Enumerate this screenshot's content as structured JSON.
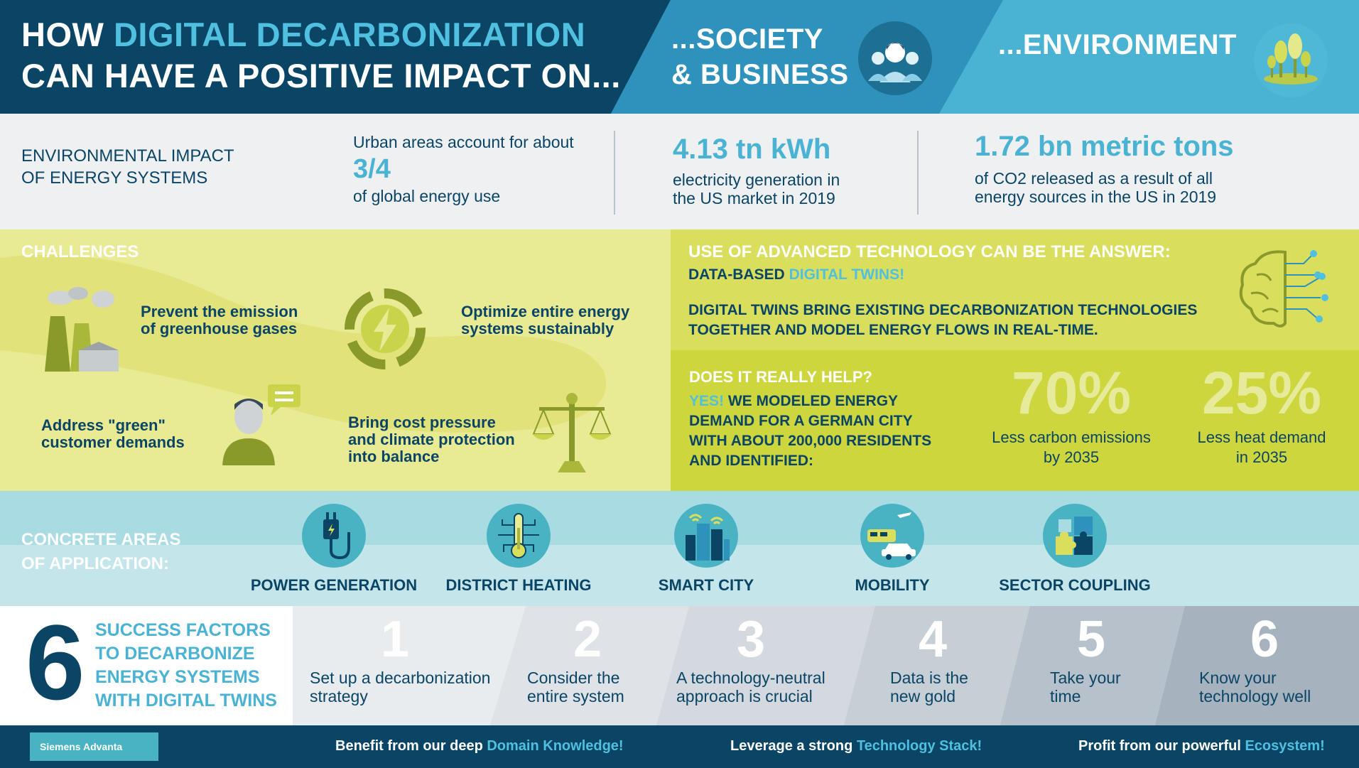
{
  "header": {
    "title_line1_prefix": "HOW",
    "title_line1_highlight": "DIGITAL DECARBONIZATION",
    "title_line2": "CAN HAVE A POSITIVE IMPACT ON...",
    "society_line1": "...SOCIETY",
    "society_line2": "& BUSINESS",
    "environment": "...ENVIRONMENT",
    "society_icon": "people-icon",
    "environment_icon": "trees-icon"
  },
  "stats": {
    "heading_line1": "ENVIRONMENTAL IMPACT",
    "heading_line2": "OF ENERGY SYSTEMS",
    "stat1_pre": "Urban areas account for about",
    "stat1_big": "3/4",
    "stat1_post": "of global energy use",
    "stat2_big": "4.13 tn kWh",
    "stat2_line1": "electricity generation in",
    "stat2_line2": "the US market in 2019",
    "stat3_big": "1.72 bn metric tons",
    "stat3_line1": "of CO2 released as a result of all",
    "stat3_line2": "energy sources in the US in 2019"
  },
  "challenges": {
    "title": "CHALLENGES",
    "item1_line1": "Prevent the emission",
    "item1_line2": "of greenhouse gases",
    "item2_line1": "Optimize entire energy",
    "item2_line2": "systems sustainably",
    "item3_line1": "Address \"green\"",
    "item3_line2": "customer demands",
    "item4_line1": "Bring cost pressure",
    "item4_line2": "and climate protection",
    "item4_line3": "into balance",
    "icons": [
      "factory-icon",
      "recycle-energy-icon",
      "person-chat-icon",
      "scale-icon"
    ]
  },
  "tech": {
    "title": "USE OF ADVANCED TECHNOLOGY CAN BE THE ANSWER:",
    "sub_prefix": "DATA-BASED",
    "sub_highlight": "DIGITAL TWINS!",
    "body_line1": "DIGITAL TWINS BRING EXISTING DECARBONIZATION TECHNOLOGIES",
    "body_line2": "TOGETHER AND MODEL ENERGY FLOWS IN REAL-TIME.",
    "icon": "brain-circuit-icon"
  },
  "help": {
    "title": "DOES IT REALLY HELP?",
    "yes": "YES!",
    "line1": "WE MODELED ENERGY",
    "line2": "DEMAND FOR A GERMAN CITY",
    "line3": "WITH ABOUT 200,000 RESIDENTS",
    "line4": "AND IDENTIFIED:",
    "pct1": "70%",
    "pct1_cap1": "Less carbon emissions",
    "pct1_cap2": "by 2035",
    "pct2": "25%",
    "pct2_cap1": "Less heat demand",
    "pct2_cap2": "in 2035"
  },
  "areas": {
    "title_line1": "CONCRETE AREAS",
    "title_line2": "OF APPLICATION:",
    "items": [
      {
        "label": "POWER GENERATION",
        "icon": "plug-icon"
      },
      {
        "label": "DISTRICT HEATING",
        "icon": "thermometer-icon"
      },
      {
        "label": "SMART CITY",
        "icon": "city-icon"
      },
      {
        "label": "MOBILITY",
        "icon": "vehicles-icon"
      },
      {
        "label": "SECTOR COUPLING",
        "icon": "puzzle-icon"
      }
    ]
  },
  "factors": {
    "big_number": "6",
    "title_line1": "SUCCESS FACTORS",
    "title_line2": "TO DECARBONIZE",
    "title_line3": "ENERGY SYSTEMS",
    "title_line4": "WITH DIGITAL TWINS",
    "items": [
      {
        "num": "1",
        "line1": "Set up a decarbonization",
        "line2": "strategy"
      },
      {
        "num": "2",
        "line1": "Consider the",
        "line2": "entire system"
      },
      {
        "num": "3",
        "line1": "A technology-neutral",
        "line2": "approach is crucial"
      },
      {
        "num": "4",
        "line1": "Data is the",
        "line2": "new gold"
      },
      {
        "num": "5",
        "line1": "Take your",
        "line2": "time"
      },
      {
        "num": "6",
        "line1": "Know your",
        "line2": "technology well"
      }
    ]
  },
  "footer": {
    "logo": "Siemens Advanta",
    "msg1_pre": "Benefit from our deep",
    "msg1_hl": "Domain Knowledge!",
    "msg2_pre": "Leverage a strong",
    "msg2_hl": "Technology Stack!",
    "msg3_pre": "Profit from our powerful",
    "msg3_hl": "Ecosystem!"
  },
  "colors": {
    "navy": "#0b4566",
    "mid_blue": "#2e92bc",
    "light_blue": "#4ab3d3",
    "cyan_text": "#4fc0e0",
    "pale_yellow": "#e9ea94",
    "lime": "#cdd63d",
    "teal": "#a8dce2"
  }
}
